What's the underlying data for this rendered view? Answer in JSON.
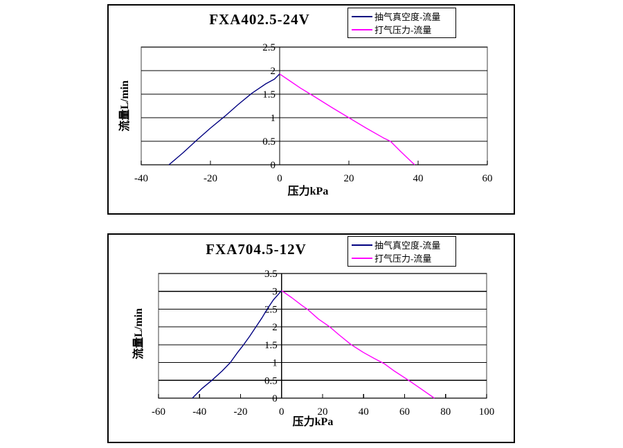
{
  "colors": {
    "vacuum_series": "#000080",
    "pressure_series": "#FF00FF",
    "gridline": "#000000",
    "plot_border": "#808080",
    "panel_border": "#000000",
    "background": "#FFFFFF"
  },
  "chart_data": [
    {
      "type": "line",
      "title": "FXA402.5-24V",
      "xlabel": "压力kPa",
      "ylabel": "流量L/min",
      "xlim": [
        -40,
        60
      ],
      "ylim": [
        0,
        2.5
      ],
      "xticks": [
        -40,
        -20,
        0,
        20,
        40,
        60
      ],
      "yticks": [
        0,
        0.5,
        1,
        1.5,
        2,
        2.5
      ],
      "grid": true,
      "legend_position": "top-right",
      "series": [
        {
          "name": "抽气真空度-流量",
          "color": "#000080",
          "points": [
            [
              -32,
              0
            ],
            [
              -28,
              0.25
            ],
            [
              -24,
              0.52
            ],
            [
              -20,
              0.78
            ],
            [
              -16,
              1.02
            ],
            [
              -12,
              1.28
            ],
            [
              -8,
              1.52
            ],
            [
              -4,
              1.72
            ],
            [
              -1.5,
              1.82
            ],
            [
              0,
              1.93
            ]
          ]
        },
        {
          "name": "打气压力-流量",
          "color": "#FF00FF",
          "points": [
            [
              0,
              1.93
            ],
            [
              3,
              1.78
            ],
            [
              6,
              1.63
            ],
            [
              10,
              1.45
            ],
            [
              15,
              1.22
            ],
            [
              20,
              1.0
            ],
            [
              25,
              0.78
            ],
            [
              30,
              0.57
            ],
            [
              32,
              0.5
            ],
            [
              35,
              0.28
            ],
            [
              39,
              0
            ]
          ]
        }
      ]
    },
    {
      "type": "line",
      "title": "FXA704.5-12V",
      "xlabel": "压力kPa",
      "ylabel": "流量L/min",
      "xlim": [
        -60,
        100
      ],
      "ylim": [
        0,
        3.5
      ],
      "xticks": [
        -60,
        -40,
        -20,
        0,
        20,
        40,
        60,
        80,
        100
      ],
      "yticks": [
        0,
        0.5,
        1,
        1.5,
        2,
        2.5,
        3,
        3.5
      ],
      "grid": true,
      "legend_position": "top-right",
      "series": [
        {
          "name": "抽气真空度-流量",
          "color": "#000080",
          "points": [
            [
              -43.5,
              0
            ],
            [
              -39,
              0.26
            ],
            [
              -34,
              0.5
            ],
            [
              -29,
              0.76
            ],
            [
              -25,
              1.0
            ],
            [
              -21.5,
              1.28
            ],
            [
              -18.5,
              1.5
            ],
            [
              -15.5,
              1.74
            ],
            [
              -12.5,
              2.0
            ],
            [
              -9.5,
              2.26
            ],
            [
              -7,
              2.5
            ],
            [
              -4,
              2.76
            ],
            [
              -1.5,
              2.92
            ],
            [
              0,
              3.02
            ]
          ]
        },
        {
          "name": "打气压力-流量",
          "color": "#FF00FF",
          "points": [
            [
              0,
              3.02
            ],
            [
              5,
              2.82
            ],
            [
              10,
              2.6
            ],
            [
              12.5,
              2.5
            ],
            [
              18,
              2.22
            ],
            [
              23.5,
              2.0
            ],
            [
              28,
              1.78
            ],
            [
              34,
              1.5
            ],
            [
              40,
              1.28
            ],
            [
              45,
              1.12
            ],
            [
              50,
              0.97
            ],
            [
              55,
              0.76
            ],
            [
              62,
              0.5
            ],
            [
              68,
              0.26
            ],
            [
              74.5,
              0
            ]
          ]
        }
      ]
    }
  ]
}
